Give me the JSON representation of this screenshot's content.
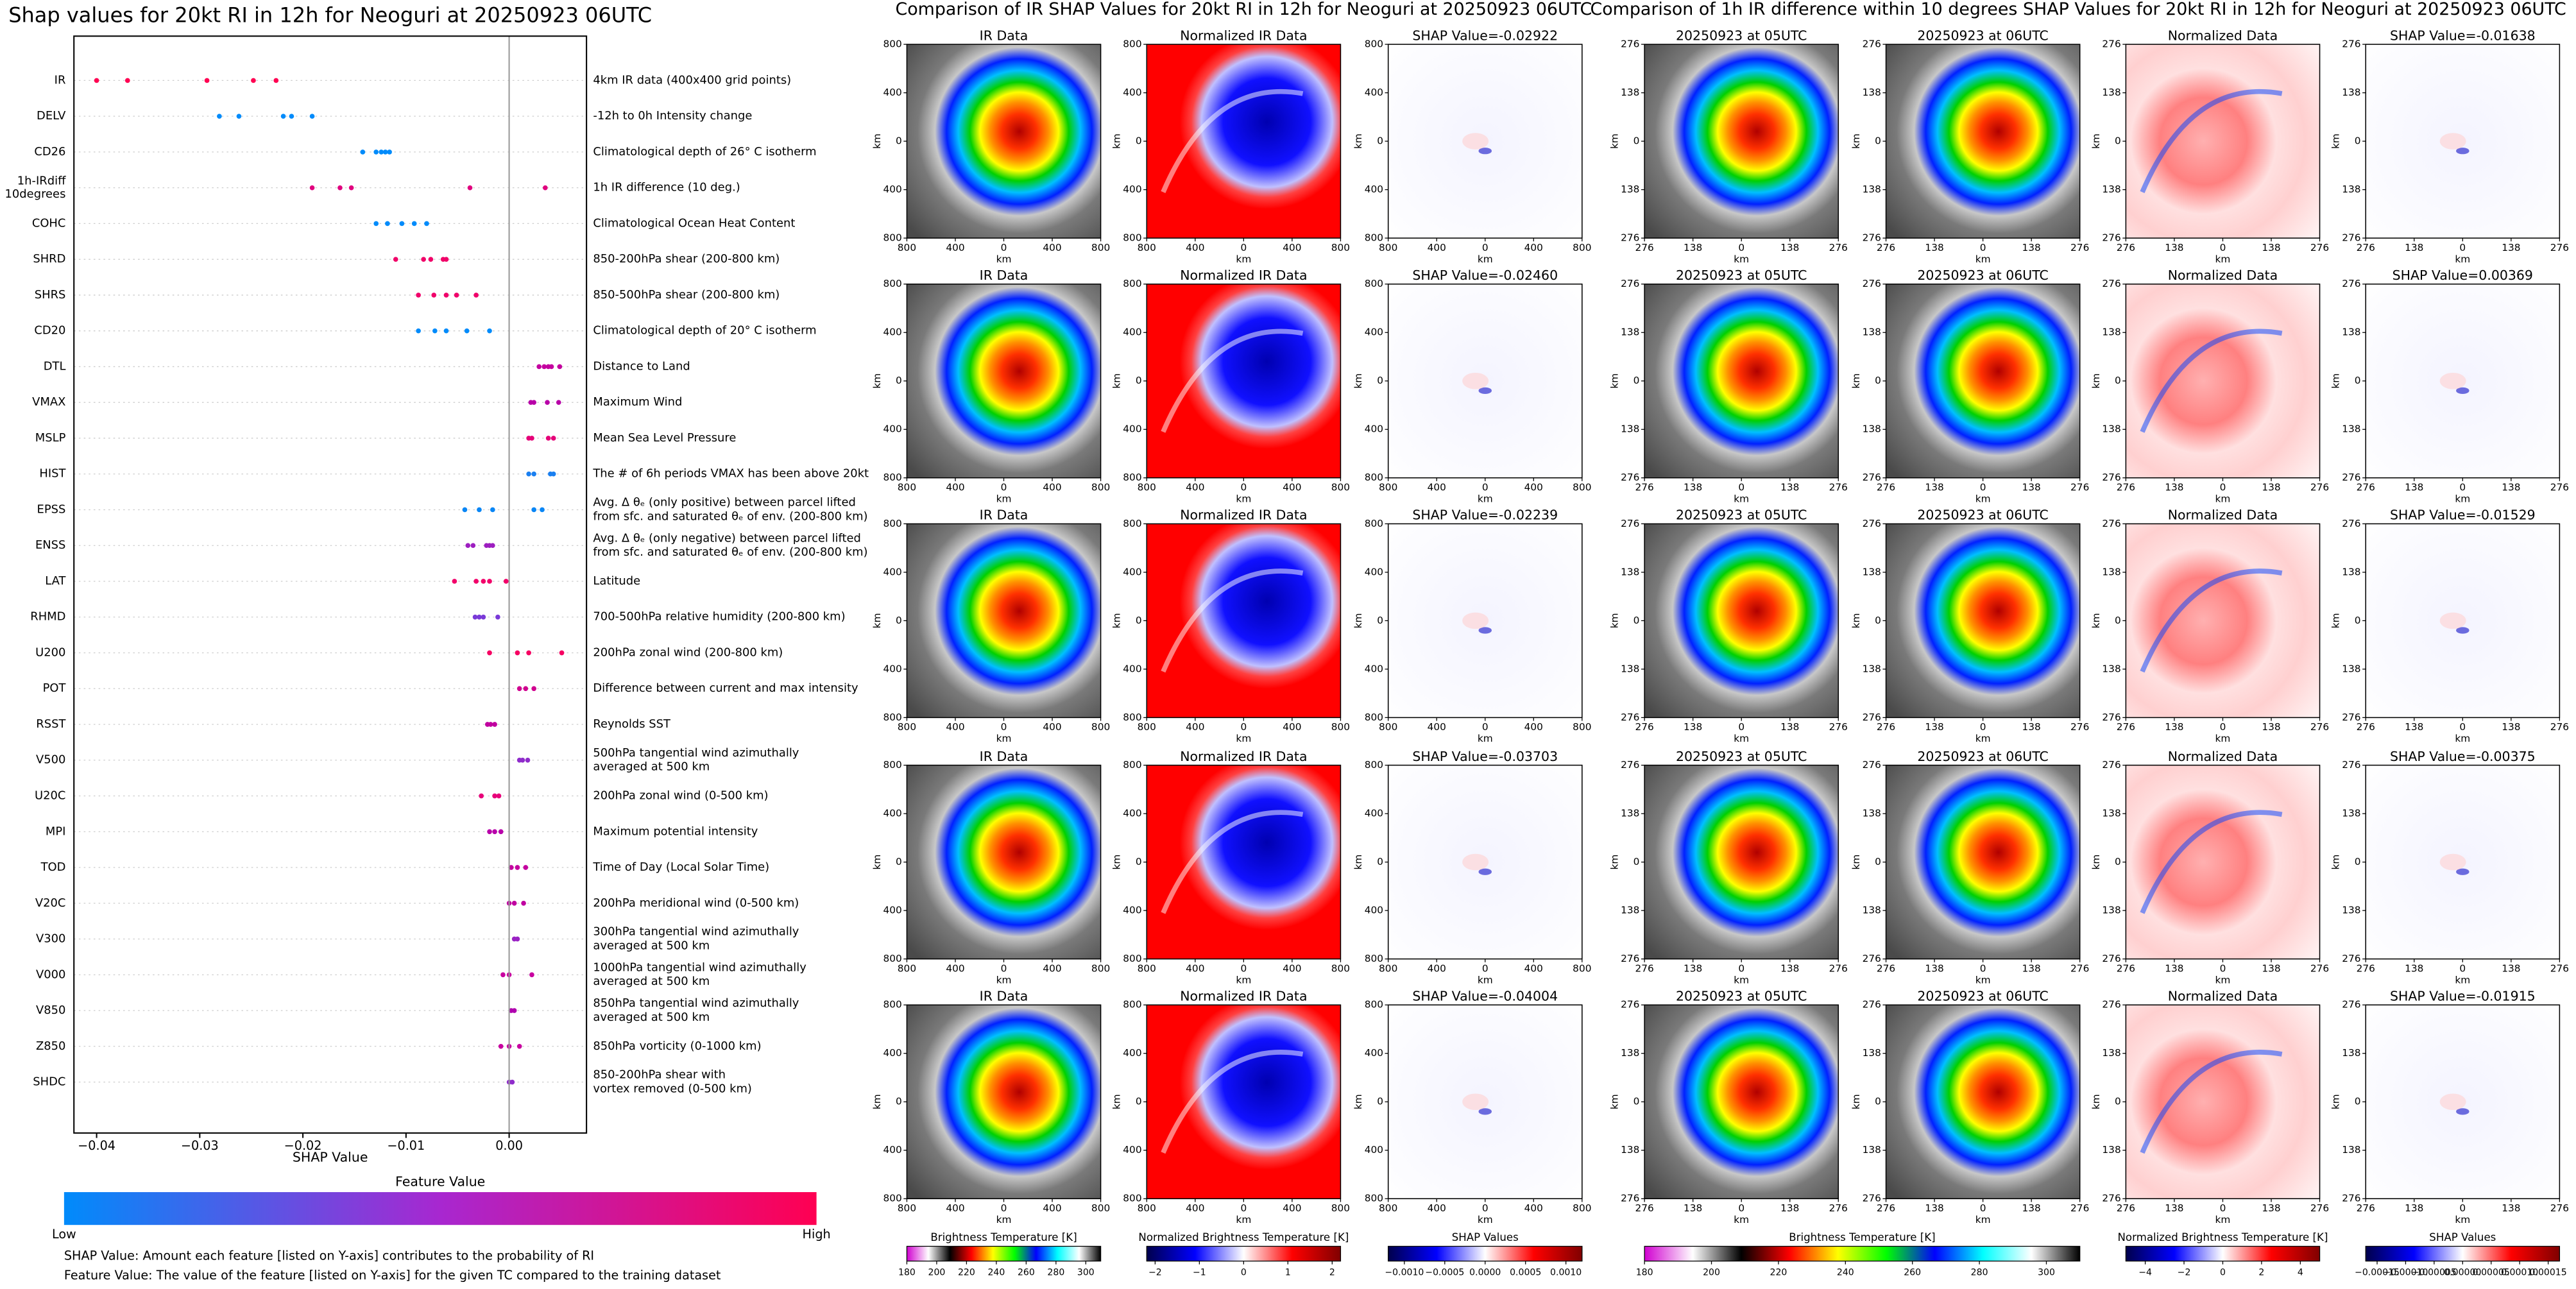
{
  "chart_data": [
    {
      "type": "scatter",
      "title": "Shap values for 20kt RI in 12h for Neoguri at 20250923 06UTC",
      "xlabel": "SHAP Value",
      "xlim": [
        -0.0422,
        0.0075
      ],
      "xticks": [
        {
          "value": -0.04,
          "label": "−0.04"
        },
        {
          "value": -0.03,
          "label": "−0.03"
        },
        {
          "value": -0.02,
          "label": "−0.02"
        },
        {
          "value": -0.01,
          "label": "−0.01"
        },
        {
          "value": 0,
          "label": "0.00"
        }
      ],
      "series": [
        {
          "name": "IR",
          "description": [
            "4km IR data (400x400 grid points)"
          ],
          "color": "#ff0052",
          "values": [
            -0.04,
            -0.037,
            -0.0293,
            -0.0248,
            -0.0226
          ]
        },
        {
          "name": "DELV",
          "description": [
            "-12h to 0h Intensity change"
          ],
          "color": "#008bfb",
          "values": [
            -0.0281,
            -0.0262,
            -0.0219,
            -0.0211,
            -0.0191
          ]
        },
        {
          "name": "CD26",
          "description": [
            "Climatological depth of 26° C isotherm"
          ],
          "color": "#008bfb",
          "values": [
            -0.0142,
            -0.0129,
            -0.0124,
            -0.012,
            -0.0116
          ]
        },
        {
          "name": [
            "1h-IRdiff",
            "10degrees"
          ],
          "description": [
            "1h IR difference (10 deg.)"
          ],
          "color": "#e0007e",
          "values": [
            -0.0191,
            -0.0164,
            -0.0153,
            -0.0038,
            0.0035
          ]
        },
        {
          "name": "COHC",
          "description": [
            "Climatological Ocean Heat Content"
          ],
          "color": "#008bfb",
          "values": [
            -0.0129,
            -0.0118,
            -0.0104,
            -0.0092,
            -0.008
          ]
        },
        {
          "name": "SHRD",
          "description": [
            "850-200hPa shear (200-800 km)"
          ],
          "color": "#f00068",
          "values": [
            -0.011,
            -0.0083,
            -0.0076,
            -0.0064,
            -0.0061
          ]
        },
        {
          "name": "SHRS",
          "description": [
            "850-500hPa shear (200-800 km)"
          ],
          "color": "#f0006a",
          "values": [
            -0.0088,
            -0.0073,
            -0.0061,
            -0.0051,
            -0.0032
          ]
        },
        {
          "name": "CD20",
          "description": [
            "Climatological depth of 20° C isotherm"
          ],
          "color": "#008bfb",
          "values": [
            -0.0088,
            -0.0072,
            -0.0061,
            -0.0041,
            -0.0019
          ]
        },
        {
          "name": "DTL",
          "description": [
            "Distance to Land"
          ],
          "color": "#c4009f",
          "values": [
            0.0029,
            0.0034,
            0.0038,
            0.0041,
            0.0049
          ]
        },
        {
          "name": "VMAX",
          "description": [
            "Maximum Wind"
          ],
          "color": "#b800a8",
          "values": [
            0.0021,
            0.0024,
            0.0037,
            0.0048
          ]
        },
        {
          "name": "MSLP",
          "description": [
            "Mean Sea Level Pressure"
          ],
          "color": "#e50078",
          "values": [
            0.0019,
            0.0022,
            0.0038,
            0.0043
          ]
        },
        {
          "name": "HIST",
          "description": [
            "The # of 6h periods VMAX has been above 20kt"
          ],
          "color": "#1a7ff0",
          "values": [
            0.0019,
            0.0024,
            0.004,
            0.0043
          ]
        },
        {
          "name": "EPSS",
          "description": [
            "Avg. Δ θₑ (only positive) between parcel lifted",
            "from sfc. and saturated θₑ of env. (200-800 km)"
          ],
          "color": "#0a86f5",
          "values": [
            -0.0043,
            -0.0029,
            -0.0016,
            0.0024,
            0.0032
          ]
        },
        {
          "name": "ENSS",
          "description": [
            "Avg. Δ θₑ (only negative) between parcel lifted",
            "from sfc. and saturated θₑ of env. (200-800 km)"
          ],
          "color": "#9d1ec0",
          "values": [
            -0.004,
            -0.0035,
            -0.0022,
            -0.0019,
            -0.0016
          ]
        },
        {
          "name": "LAT",
          "description": [
            "Latitude"
          ],
          "color": "#f2006a",
          "values": [
            -0.0053,
            -0.0032,
            -0.0025,
            -0.0019,
            -0.0003
          ]
        },
        {
          "name": "RHMD",
          "description": [
            "700-500hPa relative humidity (200-800 km)"
          ],
          "color": "#7a3ad8",
          "values": [
            -0.0033,
            -0.0029,
            -0.0025,
            -0.0011
          ]
        },
        {
          "name": "U200",
          "description": [
            "200hPa zonal wind (200-800 km)"
          ],
          "color": "#f60062",
          "values": [
            -0.0019,
            0.0008,
            0.0019,
            0.0051
          ]
        },
        {
          "name": "POT",
          "description": [
            "Difference between current and max intensity"
          ],
          "color": "#d0008f",
          "values": [
            0.001,
            0.0016,
            0.0024
          ]
        },
        {
          "name": "RSST",
          "description": [
            "Reynolds SST"
          ],
          "color": "#c0009f",
          "values": [
            -0.0021,
            -0.0018,
            -0.0014
          ]
        },
        {
          "name": "V500",
          "description": [
            "500hPa tangential wind azimuthally",
            "averaged at 500 km"
          ],
          "color": "#8f2ccb",
          "values": [
            0.001,
            0.0013,
            0.0018
          ]
        },
        {
          "name": "U20C",
          "description": [
            "200hPa zonal wind (0-500 km)"
          ],
          "color": "#e8007a",
          "values": [
            -0.0027,
            -0.0014,
            -0.001
          ]
        },
        {
          "name": "MPI",
          "description": [
            "Maximum potential intensity"
          ],
          "color": "#b800aa",
          "values": [
            -0.0019,
            -0.0014,
            -0.0008
          ]
        },
        {
          "name": "TOD",
          "description": [
            "Time of Day (Local Solar Time)"
          ],
          "color": "#c4009f",
          "values": [
            0.0002,
            0.0008,
            0.0016
          ]
        },
        {
          "name": "V20C",
          "description": [
            "200hPa meridional wind (0-500 km)"
          ],
          "color": "#c000a0",
          "values": [
            0.0,
            0.0005,
            0.0014
          ]
        },
        {
          "name": "V300",
          "description": [
            "300hPa tangential wind azimuthally",
            "averaged at 500 km"
          ],
          "color": "#9a22c4",
          "values": [
            0.0005,
            0.0008
          ]
        },
        {
          "name": "V000",
          "description": [
            "1000hPa tangential wind azimuthally",
            "averaged at 500 km"
          ],
          "color": "#c800a0",
          "values": [
            -0.0006,
            0.0,
            0.0022
          ]
        },
        {
          "name": "V850",
          "description": [
            "850hPa tangential wind azimuthally",
            "averaged at 500 km"
          ],
          "color": "#b000ae",
          "values": [
            0.0002,
            0.0005
          ]
        },
        {
          "name": "Z850",
          "description": [
            "850hPa vorticity (0-1000 km)"
          ],
          "color": "#c800a0",
          "values": [
            -0.0008,
            0.0,
            0.001
          ]
        },
        {
          "name": "SHDC",
          "description": [
            "850-200hPa shear with",
            "vortex removed (0-500 km)"
          ],
          "color": "#8f2ccb",
          "values": [
            0.0,
            0.0003
          ]
        }
      ],
      "colorbar": {
        "title": "Feature Value",
        "low_label": "Low",
        "high_label": "High",
        "colors": [
          "#008bfb",
          "#a827d0",
          "#ff0052"
        ]
      },
      "notes": [
        "SHAP Value: Amount each feature [listed on Y-axis] contributes to the probability of RI",
        "Feature Value: The value of the feature [listed on Y-axis] for the given TC compared to the training dataset"
      ]
    },
    {
      "type": "image_grid",
      "title": "Comparison of IR SHAP Values for 20kt RI in 12h for Neoguri at 20250923 06UTC",
      "xlabel": "km",
      "ylabel": "km",
      "xlim": [
        -800,
        800
      ],
      "xticks": [
        {
          "value": -800,
          "label": "800"
        },
        {
          "value": -400,
          "label": "400"
        },
        0,
        400,
        800
      ],
      "ylim": [
        -800,
        800
      ],
      "yticks": [
        {
          "value": -800,
          "label": "800"
        },
        {
          "value": -400,
          "label": "400"
        },
        0,
        400,
        800
      ],
      "panel_titles": [
        [
          "IR Data",
          "Normalized IR Data",
          "SHAP Value=-0.02922"
        ],
        [
          "IR Data",
          "Normalized IR Data",
          "SHAP Value=-0.02460"
        ],
        [
          "IR Data",
          "Normalized IR Data",
          "SHAP Value=-0.02239"
        ],
        [
          "IR Data",
          "Normalized IR Data",
          "SHAP Value=-0.03703"
        ],
        [
          "IR Data",
          "Normalized IR Data",
          "SHAP Value=-0.04004"
        ]
      ],
      "colorbars": [
        {
          "label": "Brightness Temperature [K]",
          "lim": [
            180,
            310
          ],
          "ticks": [
            180,
            200,
            220,
            240,
            260,
            280,
            300
          ],
          "colors": [
            "#d000d0",
            "#ffffff",
            "#000000",
            "#ff0000",
            "#ffff00",
            "#00ff00",
            "#0000ff",
            "#00ffff",
            "#ffffff",
            "#000000"
          ]
        },
        {
          "label": "Normalized Brightness Temperature [K]",
          "lim": [
            -2.19,
            2.19
          ],
          "ticks": [
            {
              "value": -2,
              "label": "−2"
            },
            {
              "value": -1,
              "label": "−1"
            },
            0,
            1,
            2
          ],
          "colors": [
            "#00004c",
            "#0000ff",
            "#ffffff",
            "#ff0000",
            "#800000"
          ]
        },
        {
          "label": "SHAP Values",
          "lim": [
            -0.0012,
            0.0012
          ],
          "ticks": [
            {
              "value": -0.001,
              "label": "−0.0010"
            },
            {
              "value": -0.0005,
              "label": "−0.0005"
            },
            {
              "value": 0,
              "label": "0.0000"
            },
            {
              "value": 0.0005,
              "label": "0.0005"
            },
            {
              "value": 0.001,
              "label": "0.0010"
            }
          ],
          "colors": [
            "#00004c",
            "#0000ff",
            "#ffffff",
            "#ff0000",
            "#800000"
          ]
        }
      ]
    },
    {
      "type": "image_grid",
      "title": "Comparison of 1h IR difference within 10 degrees SHAP Values for 20kt RI in 12h for Neoguri at 20250923 06UTC",
      "xlabel": "km",
      "ylabel": "km",
      "xlim": [
        -276,
        276
      ],
      "xticks": [
        {
          "value": -276,
          "label": "276"
        },
        {
          "value": -138,
          "label": "138"
        },
        0,
        138,
        276
      ],
      "ylim": [
        -276,
        276
      ],
      "yticks": [
        {
          "value": -276,
          "label": "276"
        },
        {
          "value": -138,
          "label": "138"
        },
        0,
        138,
        276
      ],
      "panel_titles": [
        [
          "20250923 at 05UTC",
          "20250923 at 06UTC",
          "Normalized Data",
          "SHAP Value=-0.01638"
        ],
        [
          "20250923 at 05UTC",
          "20250923 at 06UTC",
          "Normalized Data",
          "SHAP Value=0.00369"
        ],
        [
          "20250923 at 05UTC",
          "20250923 at 06UTC",
          "Normalized Data",
          "SHAP Value=-0.01529"
        ],
        [
          "20250923 at 05UTC",
          "20250923 at 06UTC",
          "Normalized Data",
          "SHAP Value=-0.00375"
        ],
        [
          "20250923 at 05UTC",
          "20250923 at 06UTC",
          "Normalized Data",
          "SHAP Value=-0.01915"
        ]
      ],
      "colorbars": [
        {
          "label": "Brightness Temperature [K]",
          "lim": [
            180,
            310
          ],
          "ticks": [
            180,
            200,
            220,
            240,
            260,
            280,
            300
          ],
          "colors": [
            "#d000d0",
            "#ffffff",
            "#000000",
            "#ff0000",
            "#ffff00",
            "#00ff00",
            "#0000ff",
            "#00ffff",
            "#ffffff",
            "#000000"
          ]
        },
        {
          "label": "Normalized Brightness Temperature [K]",
          "lim": [
            -5,
            5
          ],
          "ticks": [
            {
              "value": -4,
              "label": "−4"
            },
            {
              "value": -2,
              "label": "−2"
            },
            0,
            2,
            4
          ],
          "colors": [
            "#00004c",
            "#0000ff",
            "#ffffff",
            "#ff0000",
            "#800000"
          ]
        },
        {
          "label": "SHAP Values",
          "lim": [
            -0.00017,
            0.00017
          ],
          "ticks": [
            {
              "value": -0.00015,
              "label": "−0.00015"
            },
            {
              "value": -0.0001,
              "label": "−0.00010"
            },
            {
              "value": -5e-05,
              "label": "−0.00005"
            },
            {
              "value": 0,
              "label": "0.00000"
            },
            {
              "value": 5e-05,
              "label": "0.00005"
            },
            {
              "value": 0.0001,
              "label": "0.00010"
            },
            {
              "value": 0.00015,
              "label": "0.00015"
            }
          ],
          "colors": [
            "#00004c",
            "#0000ff",
            "#ffffff",
            "#ff0000",
            "#800000"
          ]
        }
      ]
    }
  ]
}
